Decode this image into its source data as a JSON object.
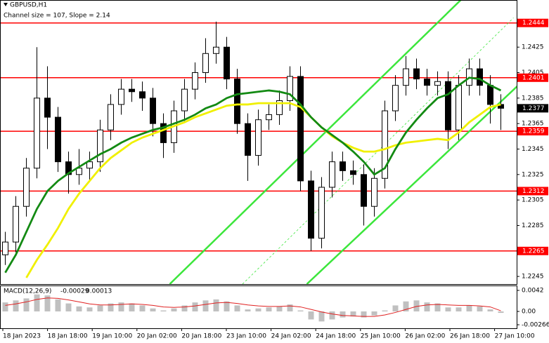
{
  "chart_data": {
    "type": "candlestick",
    "title": "GBPUSD,H1",
    "subtitle": "Channel size = 107, Slope = 2.14",
    "time_labels": [
      "18 Jan 2023",
      "18 Jan 18:00",
      "19 Jan 10:00",
      "20 Jan 02:00",
      "20 Jan 18:00",
      "23 Jan 10:00",
      "24 Jan 02:00",
      "24 Jan 18:00",
      "25 Jan 10:00",
      "26 Jan 02:00",
      "26 Jan 18:00",
      "27 Jan 10:00"
    ],
    "open": [
      1.2262,
      1.2272,
      1.23,
      1.233,
      1.2385,
      1.237,
      1.2335,
      1.2325,
      1.233,
      1.2335,
      1.236,
      1.238,
      1.2392,
      1.239,
      1.2385,
      1.2365,
      1.235,
      1.2375,
      1.2392,
      1.2405,
      1.242,
      1.2425,
      1.24,
      1.2365,
      1.234,
      1.2368,
      1.2372,
      1.2383,
      1.2402,
      1.232,
      1.2275,
      1.2315,
      1.2335,
      1.2328,
      1.2325,
      1.23,
      1.2322,
      1.2375,
      1.2395,
      1.2408,
      1.24,
      1.2395,
      1.2398,
      1.236,
      1.2395,
      1.2408,
      1.2395,
      1.238
    ],
    "high": [
      1.228,
      1.2308,
      1.2338,
      1.2425,
      1.241,
      1.2378,
      1.2343,
      1.2345,
      1.2343,
      1.2368,
      1.2388,
      1.24,
      1.24,
      1.2398,
      1.2393,
      1.2373,
      1.2383,
      1.24,
      1.2413,
      1.2432,
      1.2445,
      1.2433,
      1.2408,
      1.2373,
      1.2376,
      1.238,
      1.2391,
      1.241,
      1.241,
      1.2328,
      1.2323,
      1.2343,
      1.2343,
      1.2336,
      1.2333,
      1.233,
      1.2383,
      1.2403,
      1.2418,
      1.2416,
      1.2408,
      1.2406,
      1.2406,
      1.2403,
      1.2416,
      1.2416,
      1.2403,
      1.2388
    ],
    "low": [
      1.2254,
      1.2264,
      1.2292,
      1.2322,
      1.2345,
      1.2327,
      1.231,
      1.2317,
      1.232,
      1.2327,
      1.2352,
      1.2372,
      1.2382,
      1.2375,
      1.2355,
      1.2338,
      1.2342,
      1.2367,
      1.2384,
      1.2397,
      1.2412,
      1.2392,
      1.2357,
      1.232,
      1.2332,
      1.236,
      1.2364,
      1.2375,
      1.2312,
      1.2265,
      1.2267,
      1.2307,
      1.232,
      1.2317,
      1.2285,
      1.2292,
      1.2314,
      1.2367,
      1.2387,
      1.2392,
      1.2387,
      1.2387,
      1.2345,
      1.2352,
      1.2387,
      1.2387,
      1.2365,
      1.236
    ],
    "close": [
      1.2272,
      1.23,
      1.233,
      1.2385,
      1.237,
      1.2335,
      1.2325,
      1.233,
      1.2335,
      1.236,
      1.238,
      1.2392,
      1.239,
      1.2385,
      1.2365,
      1.235,
      1.2375,
      1.2392,
      1.2405,
      1.242,
      1.2425,
      1.24,
      1.2365,
      1.234,
      1.2368,
      1.2372,
      1.2383,
      1.2402,
      1.232,
      1.2275,
      1.2315,
      1.2335,
      1.2328,
      1.2325,
      1.23,
      1.2322,
      1.2375,
      1.2395,
      1.2408,
      1.24,
      1.2395,
      1.2398,
      1.236,
      1.2395,
      1.2408,
      1.2395,
      1.238,
      1.2377
    ],
    "ylim": [
      1.2239,
      1.2462
    ],
    "yticks": [
      1.2425,
      1.2405,
      1.2385,
      1.2365,
      1.2345,
      1.2325,
      1.2305,
      1.2285,
      1.2265,
      1.2245
    ],
    "moving_averages": [
      {
        "color": "#f0f000",
        "values": [
          null,
          null,
          1.2244,
          1.2258,
          1.227,
          1.2283,
          1.2298,
          1.231,
          1.232,
          1.233,
          1.2338,
          1.2344,
          1.235,
          1.2354,
          1.2357,
          1.236,
          1.2363,
          1.2366,
          1.237,
          1.2373,
          1.2376,
          1.2379,
          1.238,
          1.238,
          1.2381,
          1.2381,
          1.2381,
          1.2381,
          1.2378,
          1.237,
          1.2362,
          1.2355,
          1.235,
          1.2346,
          1.2343,
          1.2343,
          1.2345,
          1.2348,
          1.235,
          1.2351,
          1.2352,
          1.2353,
          1.2352,
          1.2358,
          1.2366,
          1.2372,
          1.2378,
          1.238
        ]
      },
      {
        "color": "#138a13",
        "values": [
          1.2248,
          1.2262,
          1.228,
          1.2298,
          1.2312,
          1.232,
          1.2326,
          1.2331,
          1.2336,
          1.2341,
          1.2345,
          1.235,
          1.2354,
          1.2357,
          1.236,
          1.2362,
          1.2365,
          1.2368,
          1.2372,
          1.2377,
          1.238,
          1.2385,
          1.2388,
          1.2389,
          1.239,
          1.2391,
          1.239,
          1.2388,
          1.238,
          1.237,
          1.2362,
          1.2356,
          1.235,
          1.2343,
          1.2335,
          1.2325,
          1.233,
          1.2345,
          1.2358,
          1.2368,
          1.2377,
          1.2385,
          1.2388,
          1.2395,
          1.2401,
          1.24,
          1.2395,
          1.2391
        ]
      }
    ],
    "channel": {
      "color": "#3ce63c",
      "lines": [
        {
          "x": [
            15.6,
            43.2
          ],
          "values": [
            1.2239,
            1.2462
          ]
        },
        {
          "x": [
            28.6,
            49.8
          ],
          "values": [
            1.2239,
            1.2404
          ]
        },
        {
          "x": [
            22.5,
            48.2
          ],
          "values": [
            1.2239,
            1.2448
          ],
          "dashed": true
        }
      ]
    },
    "levels": {
      "color": "#ff0000",
      "values": [
        1.2444,
        1.2401,
        1.2359,
        1.2312,
        1.2265
      ]
    },
    "last_price": {
      "value": 1.2377,
      "color": "#000000"
    },
    "macd": {
      "label": "MACD(12,26,9)",
      "histogram": [
        0.0018,
        0.0022,
        0.0026,
        0.0034,
        0.0032,
        0.0024,
        0.0016,
        0.001,
        0.0008,
        0.0012,
        0.0016,
        0.0018,
        0.0016,
        0.0012,
        0.0006,
        0.0002,
        0.0006,
        0.0012,
        0.0018,
        0.0022,
        0.0024,
        0.002,
        0.0012,
        0.0004,
        0.0006,
        0.0008,
        0.001,
        0.0014,
        0.0002,
        -0.0016,
        -0.002,
        -0.0016,
        -0.0012,
        -0.001,
        -0.0012,
        -0.0008,
        0.0002,
        0.0012,
        0.002,
        0.0022,
        0.0018,
        0.0016,
        0.0008,
        0.0008,
        0.0012,
        0.001,
        0.0004,
        -0.00029
      ],
      "histogram_color": "#c0c0c0",
      "signal": [
        0.0012,
        0.0015,
        0.0019,
        0.0024,
        0.0027,
        0.0026,
        0.0023,
        0.0019,
        0.0015,
        0.0013,
        0.0013,
        0.0014,
        0.0015,
        0.0014,
        0.0012,
        0.0009,
        0.0008,
        0.0009,
        0.0011,
        0.0014,
        0.0017,
        0.0018,
        0.0016,
        0.0013,
        0.0011,
        0.001,
        0.001,
        0.0011,
        0.0009,
        0.0004,
        -0.0001,
        -0.0005,
        -0.0008,
        -0.0009,
        -0.001,
        -0.001,
        -0.0007,
        -0.0002,
        0.0004,
        0.001,
        0.0013,
        0.0014,
        0.0013,
        0.0012,
        0.0012,
        0.0011,
        0.0009,
        0.00013
      ],
      "signal_color": "#e02020",
      "ylim": [
        -0.00336,
        0.00504
      ],
      "yticks": [
        0.0042,
        {
          "value": 0,
          "label": "0.00"
        },
        -0.00266
      ]
    }
  }
}
